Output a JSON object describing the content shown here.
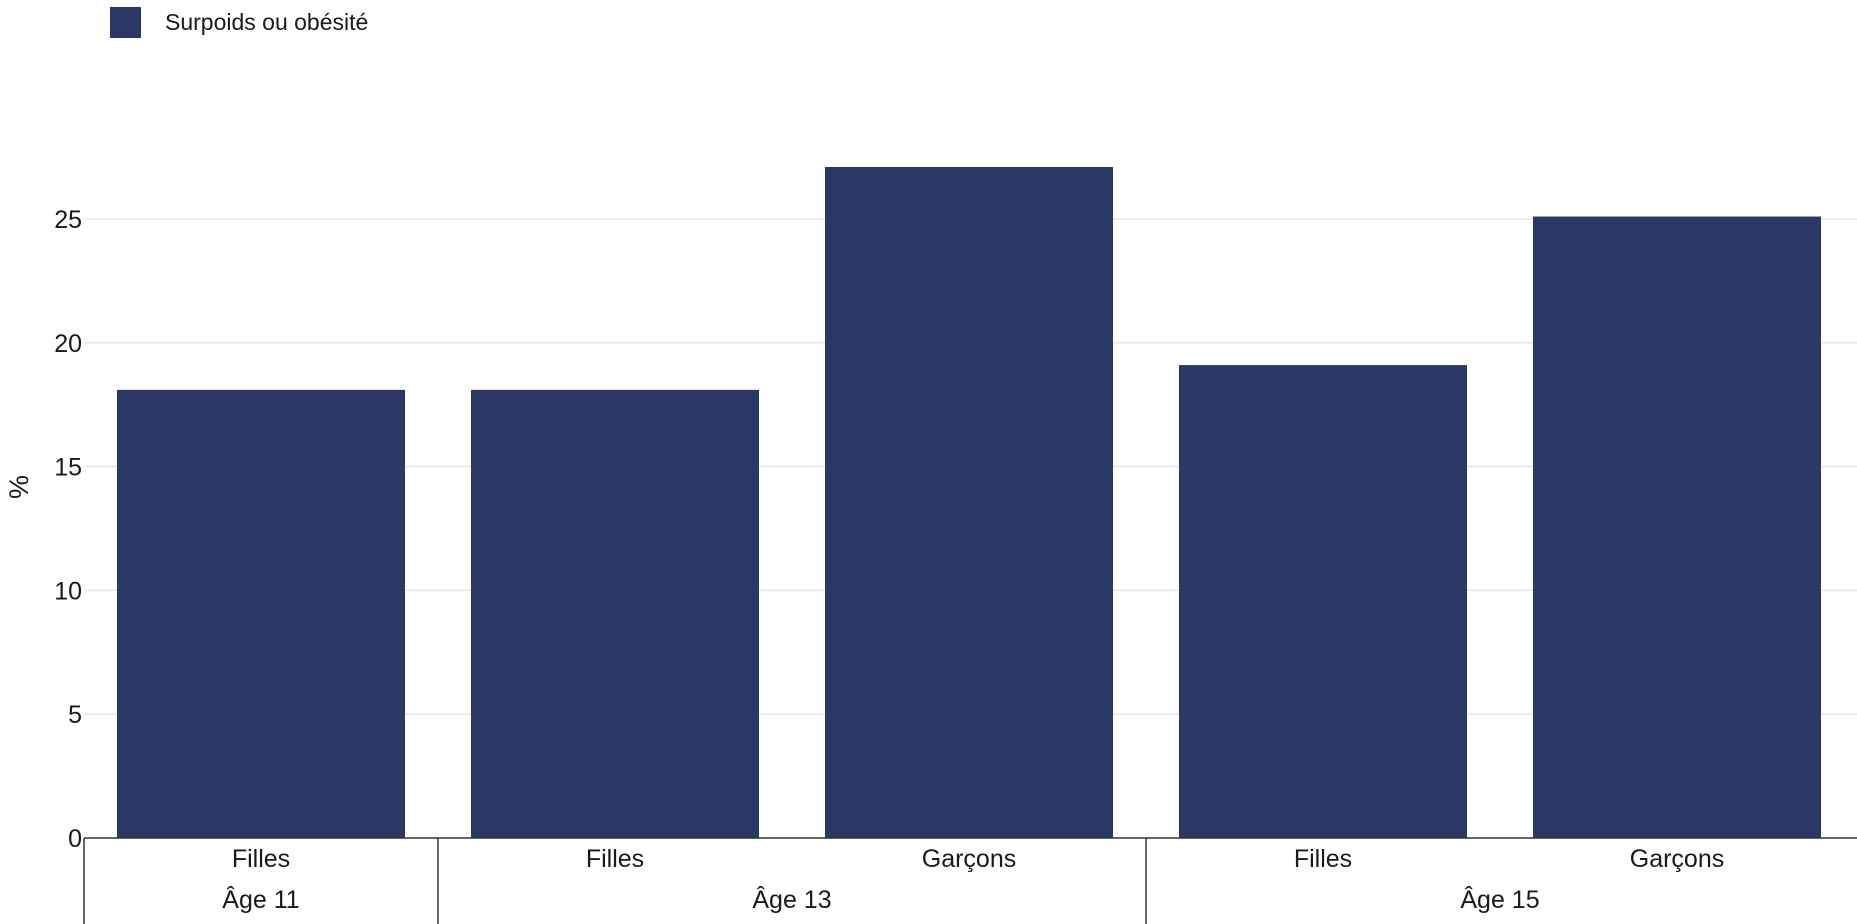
{
  "legend": {
    "label": "Surpoids ou obésité",
    "color": "#2b3764"
  },
  "chart_data": {
    "type": "bar",
    "ylabel": "%",
    "ylim": [
      0,
      28
    ],
    "yticks": [
      0,
      5,
      10,
      15,
      20,
      25
    ],
    "grid": true,
    "legend_position": "top-left",
    "bar_color": "#2b3764",
    "groups": [
      {
        "label": "Âge 11",
        "categories": [
          "Filles"
        ],
        "values": [
          18.1
        ]
      },
      {
        "label": "Âge 13",
        "categories": [
          "Filles",
          "Garçons"
        ],
        "values": [
          18.1,
          27.1
        ]
      },
      {
        "label": "Âge 15",
        "categories": [
          "Filles",
          "Garçons"
        ],
        "values": [
          19.1,
          25.1
        ]
      }
    ],
    "series": [
      {
        "name": "Surpoids ou obésité"
      }
    ]
  }
}
